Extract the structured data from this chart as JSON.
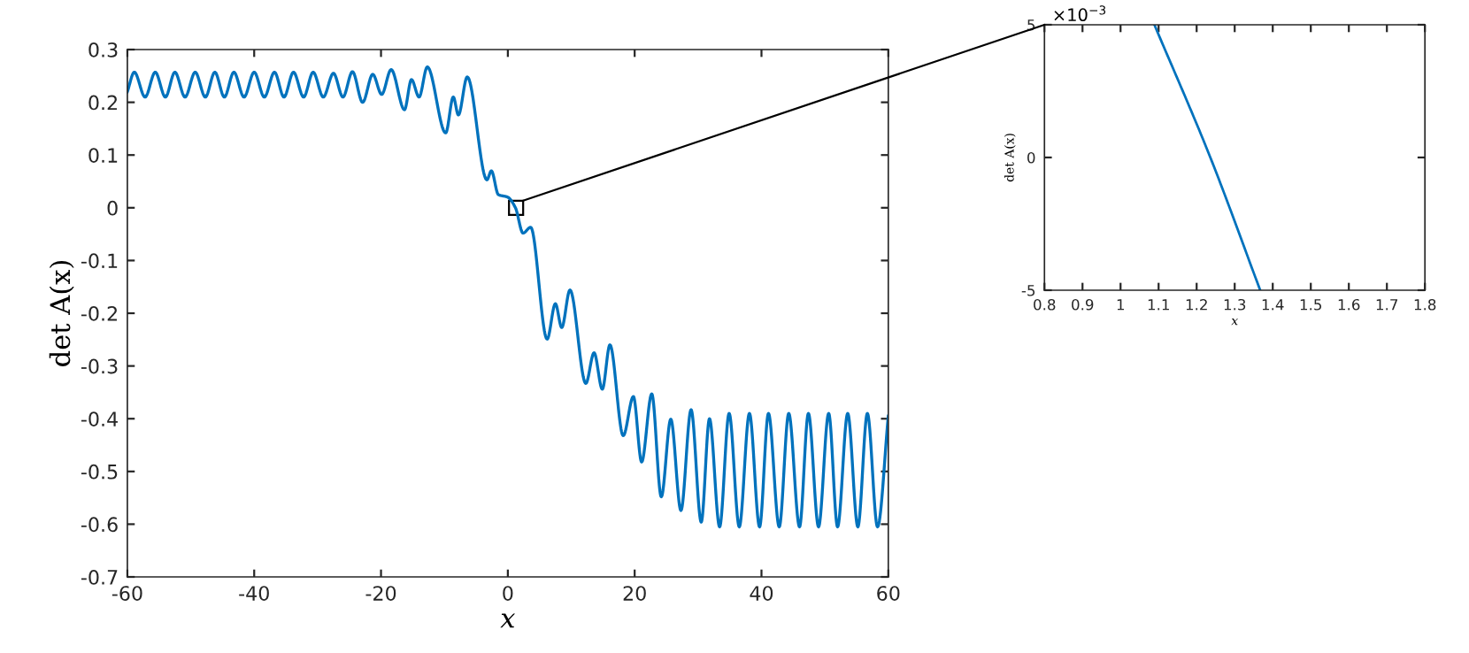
{
  "chart_data": [
    {
      "type": "line",
      "xlabel": "x",
      "ylabel": "det A(x)",
      "xlim": [
        -60,
        60
      ],
      "ylim": [
        -0.7,
        0.3
      ],
      "xticks": [
        -60,
        -40,
        -20,
        0,
        20,
        40,
        60
      ],
      "yticks": [
        -0.7,
        -0.6,
        -0.5,
        -0.4,
        -0.3,
        -0.2,
        -0.1,
        0,
        0.1,
        0.2,
        0.3
      ],
      "grid": false,
      "series": [
        {
          "color": "#0072bd",
          "x": [
            -60,
            -58.9,
            -57.2,
            -55.6,
            -54.0,
            -52.5,
            -50.9,
            -49.3,
            -47.7,
            -46.2,
            -44.7,
            -43.2,
            -41.6,
            -40.0,
            -38.4,
            -36.8,
            -35.3,
            -33.8,
            -32.2,
            -30.7,
            -29.1,
            -27.5,
            -26.0,
            -24.5,
            -22.9,
            -21.3,
            -19.9,
            -18.4,
            -16.3,
            -15.2,
            -14.0,
            -12.7,
            -9.8,
            -8.6,
            -7.8,
            -6.4,
            -3.3,
            -2.6,
            -1.5,
            0,
            1.2,
            2.4,
            3.6,
            6.2,
            7.5,
            8.5,
            9.8,
            12.3,
            13.6,
            14.9,
            16.1,
            18.2,
            19.8,
            21.1,
            22.7,
            24.2,
            25.7,
            27.3,
            28.9,
            30.5,
            31.8,
            33.4,
            34.9,
            36.5,
            38.1,
            39.7,
            41.1,
            42.8,
            44.3,
            46.0,
            47.4,
            49.0,
            50.6,
            52.0,
            53.6,
            55.2,
            56.7,
            58.3,
            60
          ],
          "values": [
            0.22,
            0.257,
            0.21,
            0.257,
            0.21,
            0.257,
            0.21,
            0.257,
            0.21,
            0.257,
            0.21,
            0.257,
            0.21,
            0.257,
            0.21,
            0.257,
            0.21,
            0.257,
            0.21,
            0.257,
            0.21,
            0.255,
            0.21,
            0.258,
            0.2,
            0.253,
            0.215,
            0.262,
            0.186,
            0.243,
            0.21,
            0.267,
            0.142,
            0.21,
            0.176,
            0.248,
            0.053,
            0.07,
            0.025,
            0.02,
            0.0,
            -0.048,
            -0.037,
            -0.249,
            -0.182,
            -0.227,
            -0.156,
            -0.333,
            -0.275,
            -0.344,
            -0.26,
            -0.432,
            -0.358,
            -0.482,
            -0.353,
            -0.548,
            -0.401,
            -0.574,
            -0.383,
            -0.596,
            -0.4,
            -0.605,
            -0.39,
            -0.605,
            -0.39,
            -0.605,
            -0.39,
            -0.605,
            -0.39,
            -0.605,
            -0.39,
            -0.605,
            -0.39,
            -0.605,
            -0.39,
            -0.605,
            -0.39,
            -0.605,
            -0.395
          ]
        }
      ]
    },
    {
      "type": "line",
      "xlabel": "x",
      "ylabel": "det A(x)",
      "xlim": [
        0.8,
        1.8
      ],
      "ylim": [
        -5,
        5
      ],
      "xticks": [
        0.8,
        0.9,
        1,
        1.1,
        1.2,
        1.3,
        1.4,
        1.5,
        1.6,
        1.7,
        1.8
      ],
      "yticks": [
        -5,
        0,
        5
      ],
      "annotations": [
        "×10$^{−3}$"
      ],
      "grid": false,
      "series": [
        {
          "color": "#0072bd",
          "x": [
            1.089,
            1.236,
            1.367
          ],
          "values": [
            5,
            0,
            -5
          ]
        }
      ]
    }
  ]
}
